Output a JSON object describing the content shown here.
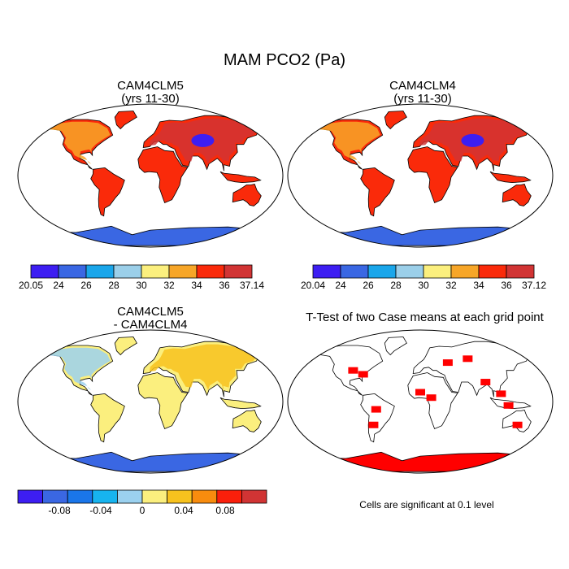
{
  "title": "MAM PCO2 (Pa)",
  "panels": [
    {
      "id": "cam4clm5",
      "title_line1": "CAM4CLM5",
      "title_line2": "(yrs 11-30)",
      "colorbar": {
        "colors": [
          "#3d1ef2",
          "#3a67e3",
          "#1aa6ea",
          "#9bcfe9",
          "#fbef7e",
          "#f7a628",
          "#fa2a0a",
          "#d13434"
        ],
        "labels": [
          "20.05",
          "24",
          "26",
          "28",
          "30",
          "32",
          "34",
          "36",
          "37.14"
        ]
      }
    },
    {
      "id": "cam4clm4",
      "title_line1": "CAM4CLM4",
      "title_line2": "(yrs 11-30)",
      "colorbar": {
        "colors": [
          "#3d1ef2",
          "#3a67e3",
          "#1aa6ea",
          "#9bcfe9",
          "#fbef7e",
          "#f7a628",
          "#fa2a0a",
          "#d13434"
        ],
        "labels": [
          "20.04",
          "24",
          "26",
          "28",
          "30",
          "32",
          "34",
          "36",
          "37.12"
        ]
      }
    },
    {
      "id": "difference",
      "title_line1": "CAM4CLM5",
      "title_line2": "- CAM4CLM4",
      "colorbar": {
        "colors": [
          "#3d1ef2",
          "#3a67e3",
          "#1a76ea",
          "#17b4ef",
          "#9bd1ef",
          "#fbef7e",
          "#f7c21e",
          "#f88c0e",
          "#fa1f0b",
          "#d13434"
        ],
        "labels": [
          "-0.08",
          "-0.04",
          "0",
          "0.04",
          "0.08"
        ]
      }
    },
    {
      "id": "ttest",
      "title_line1": "T-Test of two Case means at each grid point",
      "note": "Cells are significant at 0.1 level",
      "significant_color": "#ff0000"
    }
  ]
}
